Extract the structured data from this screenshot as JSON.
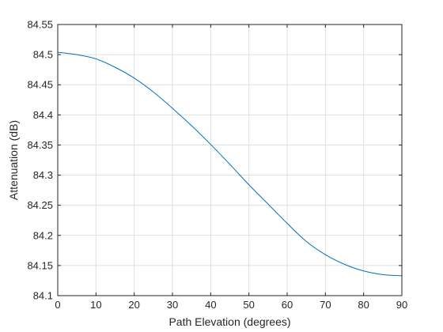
{
  "chart_data": {
    "type": "line",
    "xlabel": "Path Elevation (degrees)",
    "ylabel": "Attenuation (dB)",
    "xlim": [
      0,
      90
    ],
    "ylim": [
      84.1,
      84.55
    ],
    "x_ticks": [
      0,
      10,
      20,
      30,
      40,
      50,
      60,
      70,
      80,
      90
    ],
    "x_tick_labels": [
      "0",
      "10",
      "20",
      "30",
      "40",
      "50",
      "60",
      "70",
      "80",
      "90"
    ],
    "y_ticks": [
      84.1,
      84.15,
      84.2,
      84.25,
      84.3,
      84.35,
      84.4,
      84.45,
      84.5,
      84.55
    ],
    "y_tick_labels": [
      "84.1",
      "84.15",
      "84.2",
      "84.25",
      "84.3",
      "84.35",
      "84.4",
      "84.45",
      "84.5",
      "84.55"
    ],
    "grid": true,
    "series": [
      {
        "color": "#0072BD",
        "x": [
          0,
          5,
          10,
          15,
          20,
          25,
          30,
          35,
          40,
          45,
          50,
          55,
          60,
          65,
          70,
          75,
          80,
          85,
          90
        ],
        "y": [
          84.504,
          84.5,
          84.493,
          84.479,
          84.461,
          84.438,
          84.411,
          84.382,
          84.351,
          84.318,
          84.284,
          84.252,
          84.22,
          84.19,
          84.168,
          84.152,
          84.141,
          84.135,
          84.133
        ]
      }
    ]
  }
}
